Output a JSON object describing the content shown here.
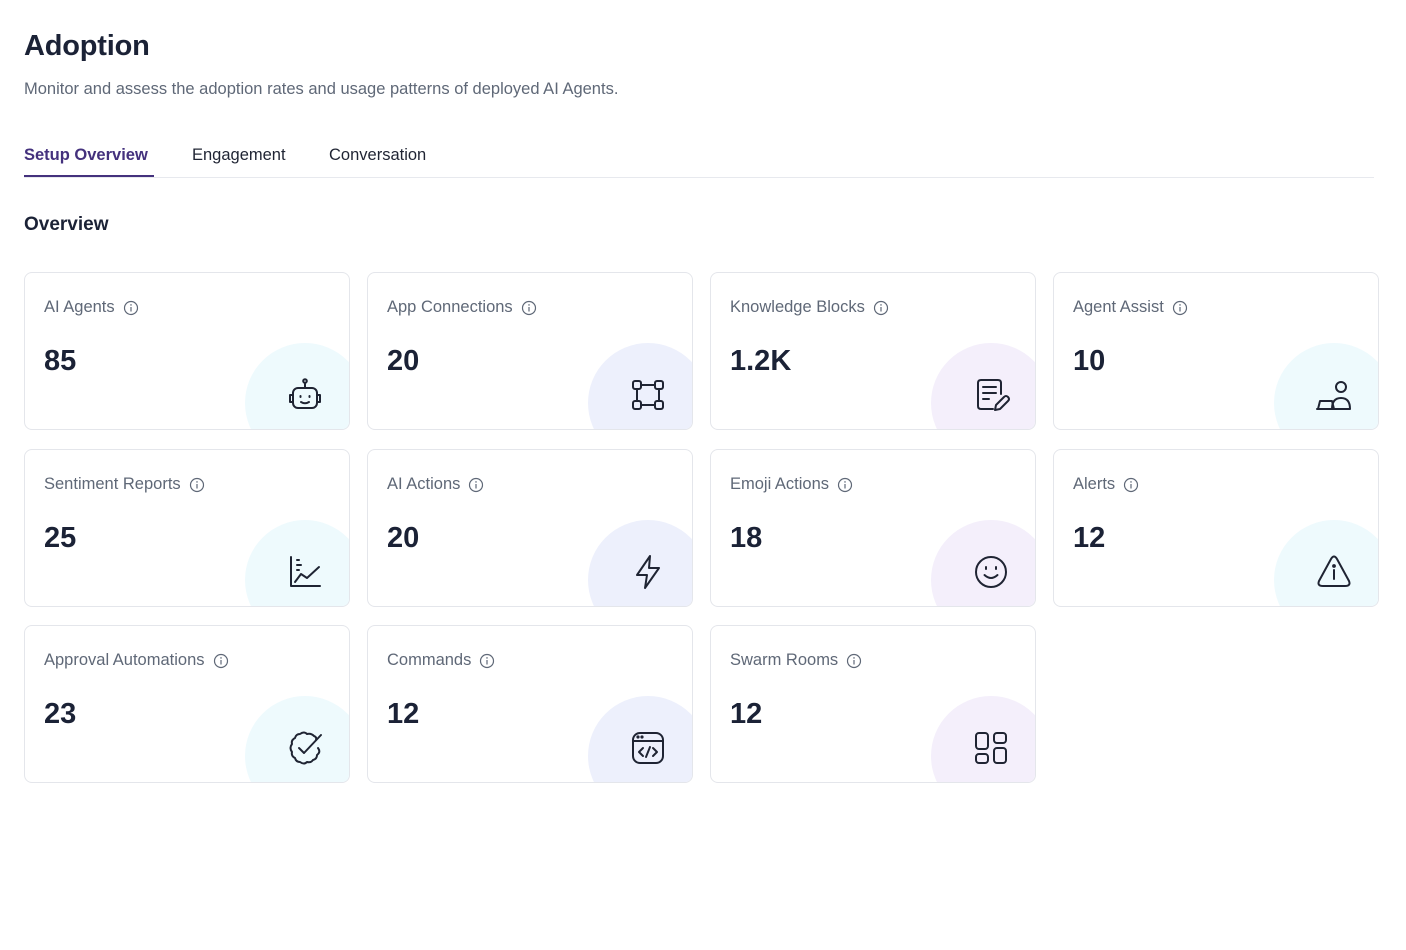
{
  "header": {
    "title": "Adoption",
    "subtitle": "Monitor and assess the adoption rates and usage patterns of deployed AI Agents."
  },
  "tabs": [
    {
      "label": "Setup Overview",
      "active": true
    },
    {
      "label": "Engagement",
      "active": false
    },
    {
      "label": "Conversation",
      "active": false
    }
  ],
  "section": {
    "title": "Overview"
  },
  "cards": [
    {
      "label": "AI Agents",
      "value": "85",
      "icon": "robot-icon"
    },
    {
      "label": "App Connections",
      "value": "20",
      "icon": "connections-icon"
    },
    {
      "label": "Knowledge Blocks",
      "value": "1.2K",
      "icon": "note-edit-icon"
    },
    {
      "label": "Agent Assist",
      "value": "10",
      "icon": "agent-assist-icon"
    },
    {
      "label": "Sentiment Reports",
      "value": "25",
      "icon": "chart-line-icon"
    },
    {
      "label": "AI Actions",
      "value": "20",
      "icon": "lightning-icon"
    },
    {
      "label": "Emoji Actions",
      "value": "18",
      "icon": "smiley-icon"
    },
    {
      "label": "Alerts",
      "value": "12",
      "icon": "alert-triangle-icon"
    },
    {
      "label": "Approval Automations",
      "value": "23",
      "icon": "badge-check-icon"
    },
    {
      "label": "Commands",
      "value": "12",
      "icon": "code-window-icon"
    },
    {
      "label": "Swarm Rooms",
      "value": "12",
      "icon": "layout-grid-icon"
    }
  ],
  "colors": {
    "accent": "#44317d",
    "blob_cyan": "#eefafd",
    "blob_indigo": "#edf0fc",
    "blob_lilac": "#f4effb"
  }
}
